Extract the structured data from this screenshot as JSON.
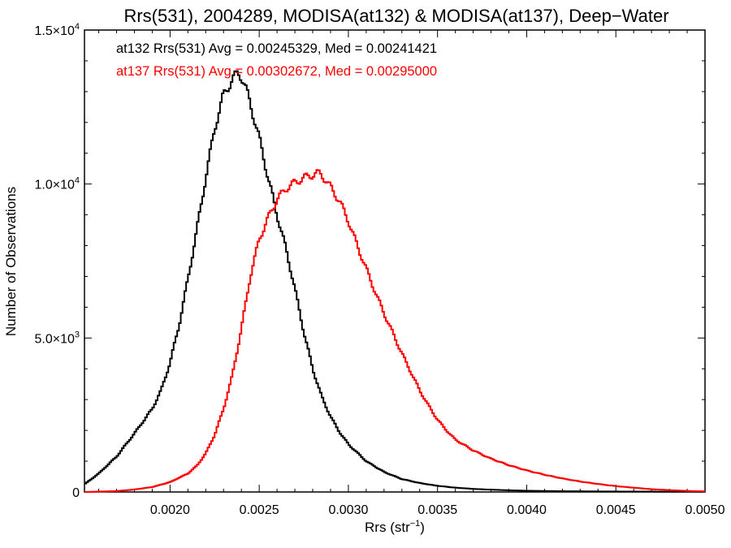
{
  "chart_data": {
    "type": "line",
    "title": "Rrs(531), 2004289, MODISA(at132) & MODISA(at137), Deep−Water",
    "xlabel": "Rrs (str",
    "xlabel_sup": "−1",
    "xlabel_close": ")",
    "ylabel": "Number of Observations",
    "xlim": [
      0.00152,
      0.005
    ],
    "ylim": [
      0,
      15000
    ],
    "x_ticks": [
      {
        "value": 0.002,
        "label": "0.0020"
      },
      {
        "value": 0.0025,
        "label": "0.0025"
      },
      {
        "value": 0.003,
        "label": "0.0030"
      },
      {
        "value": 0.0035,
        "label": "0.0035"
      },
      {
        "value": 0.004,
        "label": "0.0040"
      },
      {
        "value": 0.0045,
        "label": "0.0045"
      },
      {
        "value": 0.005,
        "label": "0.0050"
      }
    ],
    "y_ticks": [
      {
        "value": 0,
        "mant": "0",
        "exp": ""
      },
      {
        "value": 5000,
        "mant": "5.0×10",
        "exp": "3"
      },
      {
        "value": 10000,
        "mant": "1.0×10",
        "exp": "4"
      },
      {
        "value": 15000,
        "mant": "1.5×10",
        "exp": "4"
      }
    ],
    "annotations": [
      {
        "text": "at132 Rrs(531) Avg = 0.00245329, Med = 0.00241421",
        "color": "#000000"
      },
      {
        "text": "at137 Rrs(531) Avg = 0.00302672, Med = 0.00295000",
        "color": "#ff0000"
      }
    ],
    "series": [
      {
        "color": "#000000",
        "x": [
          0.00152,
          0.0016,
          0.0017,
          0.0018,
          0.0019,
          0.00195,
          0.002,
          0.00205,
          0.0021,
          0.00215,
          0.0022,
          0.00225,
          0.0023,
          0.00235,
          0.00238,
          0.0024,
          0.00242,
          0.00245,
          0.0025,
          0.00255,
          0.0026,
          0.00265,
          0.0027,
          0.00275,
          0.0028,
          0.00285,
          0.0029,
          0.00295,
          0.003,
          0.0031,
          0.0032,
          0.0033,
          0.0034,
          0.0035,
          0.0036,
          0.0037,
          0.0038,
          0.0039,
          0.004,
          0.0042,
          0.0045,
          0.0048,
          0.005
        ],
        "y": [
          250,
          600,
          1150,
          1900,
          2700,
          3300,
          4200,
          5400,
          6900,
          8500,
          10200,
          11800,
          12900,
          13400,
          13600,
          13500,
          13200,
          12600,
          11500,
          10200,
          9000,
          7900,
          6600,
          5200,
          4000,
          3100,
          2450,
          1950,
          1550,
          1000,
          650,
          420,
          290,
          200,
          140,
          100,
          75,
          55,
          40,
          25,
          15,
          10,
          8
        ]
      },
      {
        "color": "#ff0000",
        "x": [
          0.00152,
          0.0017,
          0.0018,
          0.0019,
          0.002,
          0.0021,
          0.00215,
          0.0022,
          0.00225,
          0.0023,
          0.00235,
          0.0024,
          0.00245,
          0.0025,
          0.00255,
          0.0026,
          0.00265,
          0.0027,
          0.00275,
          0.0028,
          0.00283,
          0.00285,
          0.00287,
          0.0029,
          0.00295,
          0.003,
          0.00305,
          0.0031,
          0.00315,
          0.0032,
          0.00325,
          0.0033,
          0.00335,
          0.0034,
          0.00345,
          0.0035,
          0.00355,
          0.0036,
          0.0037,
          0.0038,
          0.0039,
          0.004,
          0.0041,
          0.0042,
          0.0043,
          0.0044,
          0.0045,
          0.0046,
          0.0047,
          0.0048,
          0.0049,
          0.005
        ],
        "y": [
          0,
          30,
          80,
          160,
          320,
          600,
          850,
          1250,
          1850,
          2700,
          3800,
          5300,
          7000,
          8200,
          8900,
          9500,
          9850,
          10050,
          10200,
          10300,
          10350,
          10300,
          10150,
          9900,
          9450,
          8800,
          8000,
          7250,
          6500,
          5800,
          5150,
          4500,
          3900,
          3300,
          2800,
          2350,
          2000,
          1700,
          1350,
          1080,
          870,
          700,
          560,
          440,
          340,
          260,
          190,
          140,
          90,
          60,
          35,
          20
        ]
      }
    ]
  }
}
